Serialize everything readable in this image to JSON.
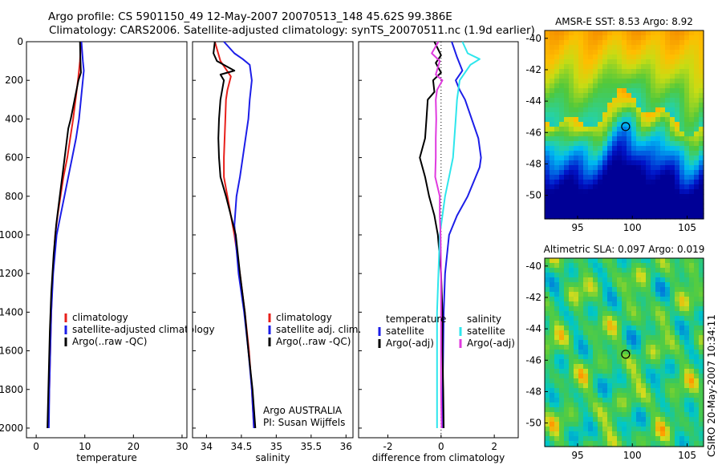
{
  "header": {
    "title_line1": "Argo profile: CS 5901150_49 12-May-2007 20070513_148 45.62S 99.386E",
    "title_line2": "Climatology: CARS2006. Satellite-adjusted climatology: synTS_20070511.nc (1.9d earlier)"
  },
  "footer": {
    "credit": "CSIRO 20-May-2007 10:34:11"
  },
  "colors": {
    "red": "#e8201b",
    "blue": "#1c1ee8",
    "black": "#000000",
    "cyan": "#2ee6ec",
    "magenta": "#e03adf"
  },
  "chart_data": [
    {
      "type": "line",
      "id": "temperature",
      "xlabel": "temperature",
      "ylabel": "",
      "xlim": [
        -2,
        31
      ],
      "ylim": [
        2050,
        0
      ],
      "xticks": [
        "0",
        "10",
        "20",
        "30"
      ],
      "yticks": [
        "0",
        "200",
        "400",
        "600",
        "800",
        "1000",
        "1200",
        "1400",
        "1600",
        "1800",
        "2000"
      ],
      "legend": {
        "placement": "lower-right",
        "entries": [
          "climatology",
          "satellite-adjusted climatology",
          "Argo(..raw -QC)"
        ]
      },
      "series": [
        {
          "name": "climatology",
          "color": "red",
          "points": [
            [
              9.2,
              0
            ],
            [
              9.0,
              100
            ],
            [
              8.8,
              150
            ],
            [
              8.6,
              200
            ],
            [
              8.1,
              300
            ],
            [
              7.6,
              400
            ],
            [
              7.0,
              500
            ],
            [
              6.4,
              600
            ],
            [
              5.6,
              700
            ],
            [
              5.0,
              800
            ],
            [
              4.4,
              900
            ],
            [
              3.9,
              1000
            ],
            [
              3.4,
              1200
            ],
            [
              3.1,
              1400
            ],
            [
              2.9,
              1600
            ],
            [
              2.7,
              1800
            ],
            [
              2.5,
              2000
            ]
          ]
        },
        {
          "name": "satellite-adjusted climatology",
          "color": "blue",
          "points": [
            [
              9.3,
              0
            ],
            [
              9.6,
              100
            ],
            [
              9.8,
              150
            ],
            [
              9.6,
              200
            ],
            [
              9.2,
              300
            ],
            [
              8.8,
              400
            ],
            [
              8.2,
              500
            ],
            [
              7.4,
              600
            ],
            [
              6.6,
              700
            ],
            [
              5.8,
              800
            ],
            [
              5.0,
              900
            ],
            [
              4.2,
              1000
            ],
            [
              3.5,
              1200
            ],
            [
              3.1,
              1400
            ],
            [
              2.9,
              1600
            ],
            [
              2.7,
              1800
            ],
            [
              2.6,
              2000
            ]
          ]
        },
        {
          "name": "Argo(..raw -QC)",
          "color": "black",
          "points": [
            [
              9.0,
              0
            ],
            [
              9.1,
              100
            ],
            [
              9.2,
              160
            ],
            [
              8.7,
              200
            ],
            [
              7.9,
              300
            ],
            [
              7.1,
              400
            ],
            [
              6.6,
              450
            ],
            [
              6.1,
              550
            ],
            [
              5.6,
              650
            ],
            [
              5.1,
              750
            ],
            [
              4.6,
              850
            ],
            [
              4.1,
              950
            ],
            [
              3.6,
              1100
            ],
            [
              3.1,
              1300
            ],
            [
              2.8,
              1500
            ],
            [
              2.6,
              1700
            ],
            [
              2.4,
              1900
            ],
            [
              2.3,
              2000
            ]
          ]
        }
      ]
    },
    {
      "type": "line",
      "id": "salinity",
      "xlabel": "salinity",
      "ylabel": "",
      "xlim": [
        33.8,
        36.1
      ],
      "ylim": [
        2050,
        0
      ],
      "xticks": [
        "34",
        "34.5",
        "35",
        "35.5",
        "36"
      ],
      "legend": {
        "placement": "lower-right",
        "entries": [
          "climatology",
          "satellite adj. clim.",
          "Argo(..raw -QC)"
        ]
      },
      "annotations": [
        "Argo AUSTRALIA",
        "PI: Susan Wijffels"
      ],
      "series": [
        {
          "name": "climatology",
          "color": "red",
          "points": [
            [
              34.12,
              0
            ],
            [
              34.2,
              100
            ],
            [
              34.35,
              180
            ],
            [
              34.3,
              250
            ],
            [
              34.28,
              300
            ],
            [
              34.27,
              400
            ],
            [
              34.26,
              500
            ],
            [
              34.25,
              600
            ],
            [
              34.25,
              700
            ],
            [
              34.3,
              800
            ],
            [
              34.35,
              900
            ],
            [
              34.4,
              1000
            ],
            [
              34.48,
              1200
            ],
            [
              34.55,
              1400
            ],
            [
              34.61,
              1600
            ],
            [
              34.65,
              1800
            ],
            [
              34.68,
              2000
            ]
          ]
        },
        {
          "name": "satellite adj. clim.",
          "color": "blue",
          "points": [
            [
              34.25,
              0
            ],
            [
              34.4,
              60
            ],
            [
              34.52,
              90
            ],
            [
              34.62,
              120
            ],
            [
              34.65,
              200
            ],
            [
              34.62,
              300
            ],
            [
              34.6,
              400
            ],
            [
              34.56,
              500
            ],
            [
              34.52,
              600
            ],
            [
              34.48,
              700
            ],
            [
              34.43,
              800
            ],
            [
              34.4,
              950
            ],
            [
              34.46,
              1200
            ],
            [
              34.54,
              1400
            ],
            [
              34.6,
              1600
            ],
            [
              34.65,
              1800
            ],
            [
              34.68,
              2000
            ]
          ]
        },
        {
          "name": "Argo(..raw -QC)",
          "color": "black",
          "points": [
            [
              34.12,
              0
            ],
            [
              34.1,
              60
            ],
            [
              34.15,
              100
            ],
            [
              34.4,
              150
            ],
            [
              34.2,
              170
            ],
            [
              34.25,
              200
            ],
            [
              34.2,
              300
            ],
            [
              34.18,
              400
            ],
            [
              34.17,
              500
            ],
            [
              34.18,
              600
            ],
            [
              34.2,
              700
            ],
            [
              34.28,
              800
            ],
            [
              34.35,
              900
            ],
            [
              34.42,
              1000
            ],
            [
              34.48,
              1200
            ],
            [
              34.55,
              1400
            ],
            [
              34.6,
              1600
            ],
            [
              34.66,
              1800
            ],
            [
              34.7,
              2000
            ]
          ]
        }
      ]
    },
    {
      "type": "line",
      "id": "difference",
      "xlabel": "difference from climatology",
      "ylabel": "",
      "xlim": [
        -3.1,
        2.9
      ],
      "ylim": [
        2050,
        0
      ],
      "xticks": [
        "-2",
        "0",
        "2"
      ],
      "legend": {
        "placement": "lower-center",
        "group1_title": "temperature",
        "group1_entries": [
          "satellite",
          "Argo(-adj)"
        ],
        "group2_title": "salinity",
        "group2_entries": [
          "satellite",
          "Argo(-adj)"
        ]
      },
      "series": [
        {
          "name": "temperature satellite",
          "color": "blue",
          "points": [
            [
              0.4,
              0
            ],
            [
              0.6,
              80
            ],
            [
              0.8,
              150
            ],
            [
              0.55,
              200
            ],
            [
              0.7,
              250
            ],
            [
              0.9,
              300
            ],
            [
              1.15,
              400
            ],
            [
              1.4,
              500
            ],
            [
              1.5,
              600
            ],
            [
              1.45,
              650
            ],
            [
              1.3,
              700
            ],
            [
              1.0,
              800
            ],
            [
              0.6,
              900
            ],
            [
              0.3,
              1000
            ],
            [
              0.15,
              1200
            ],
            [
              0.1,
              1400
            ],
            [
              0.08,
              1600
            ],
            [
              0.06,
              1800
            ],
            [
              0.05,
              2000
            ]
          ]
        },
        {
          "name": "temperature Argo(-adj)",
          "color": "black",
          "points": [
            [
              -0.25,
              0
            ],
            [
              0.0,
              70
            ],
            [
              -0.2,
              110
            ],
            [
              0.0,
              160
            ],
            [
              -0.3,
              200
            ],
            [
              -0.25,
              260
            ],
            [
              -0.5,
              300
            ],
            [
              -0.55,
              400
            ],
            [
              -0.6,
              500
            ],
            [
              -0.8,
              600
            ],
            [
              -0.6,
              700
            ],
            [
              -0.45,
              800
            ],
            [
              -0.25,
              900
            ],
            [
              -0.12,
              1000
            ],
            [
              0.0,
              1200
            ],
            [
              0.05,
              1400
            ],
            [
              0.05,
              1600
            ],
            [
              0.08,
              1800
            ],
            [
              0.1,
              2000
            ]
          ]
        },
        {
          "name": "salinity satellite",
          "color": "cyan",
          "points": [
            [
              0.8,
              0
            ],
            [
              1.0,
              60
            ],
            [
              1.45,
              90
            ],
            [
              1.1,
              120
            ],
            [
              0.7,
              200
            ],
            [
              0.6,
              300
            ],
            [
              0.55,
              400
            ],
            [
              0.5,
              500
            ],
            [
              0.45,
              600
            ],
            [
              0.3,
              700
            ],
            [
              0.15,
              800
            ],
            [
              -0.05,
              1000
            ],
            [
              -0.1,
              1200
            ],
            [
              -0.15,
              1400
            ],
            [
              -0.15,
              1600
            ],
            [
              -0.15,
              1800
            ],
            [
              -0.15,
              2000
            ]
          ]
        },
        {
          "name": "salinity Argo(-adj)",
          "color": "magenta",
          "points": [
            [
              -0.1,
              0
            ],
            [
              -0.35,
              60
            ],
            [
              -0.05,
              100
            ],
            [
              -0.2,
              170
            ],
            [
              0.05,
              200
            ],
            [
              -0.15,
              250
            ],
            [
              -0.2,
              300
            ],
            [
              -0.18,
              400
            ],
            [
              -0.2,
              500
            ],
            [
              -0.2,
              600
            ],
            [
              -0.22,
              700
            ],
            [
              -0.05,
              800
            ],
            [
              -0.05,
              900
            ],
            [
              -0.02,
              1000
            ],
            [
              0.0,
              1200
            ],
            [
              0.0,
              1400
            ],
            [
              0.0,
              1600
            ],
            [
              0.0,
              1800
            ],
            [
              0.02,
              2000
            ]
          ]
        }
      ]
    },
    {
      "type": "heatmap",
      "id": "sst-map",
      "title": "AMSR-E SST: 8.53 Argo: 8.92",
      "xlim": [
        92,
        106.5
      ],
      "ylim": [
        -51.5,
        -39.5
      ],
      "xticks": [
        "95",
        "100",
        "105"
      ],
      "yticks": [
        "-40",
        "-42",
        "-44",
        "-46",
        "-48",
        "-50"
      ],
      "marker": [
        99.386,
        -45.62
      ]
    },
    {
      "type": "heatmap",
      "id": "sla-map",
      "title": "Altimetric SLA: 0.097 Argo: 0.019",
      "xlim": [
        92,
        106.5
      ],
      "ylim": [
        -51.5,
        -39.5
      ],
      "xticks": [
        "95",
        "100",
        "105"
      ],
      "yticks": [
        "-40",
        "-42",
        "-44",
        "-46",
        "-48",
        "-50"
      ],
      "marker": [
        99.386,
        -45.62
      ]
    }
  ]
}
